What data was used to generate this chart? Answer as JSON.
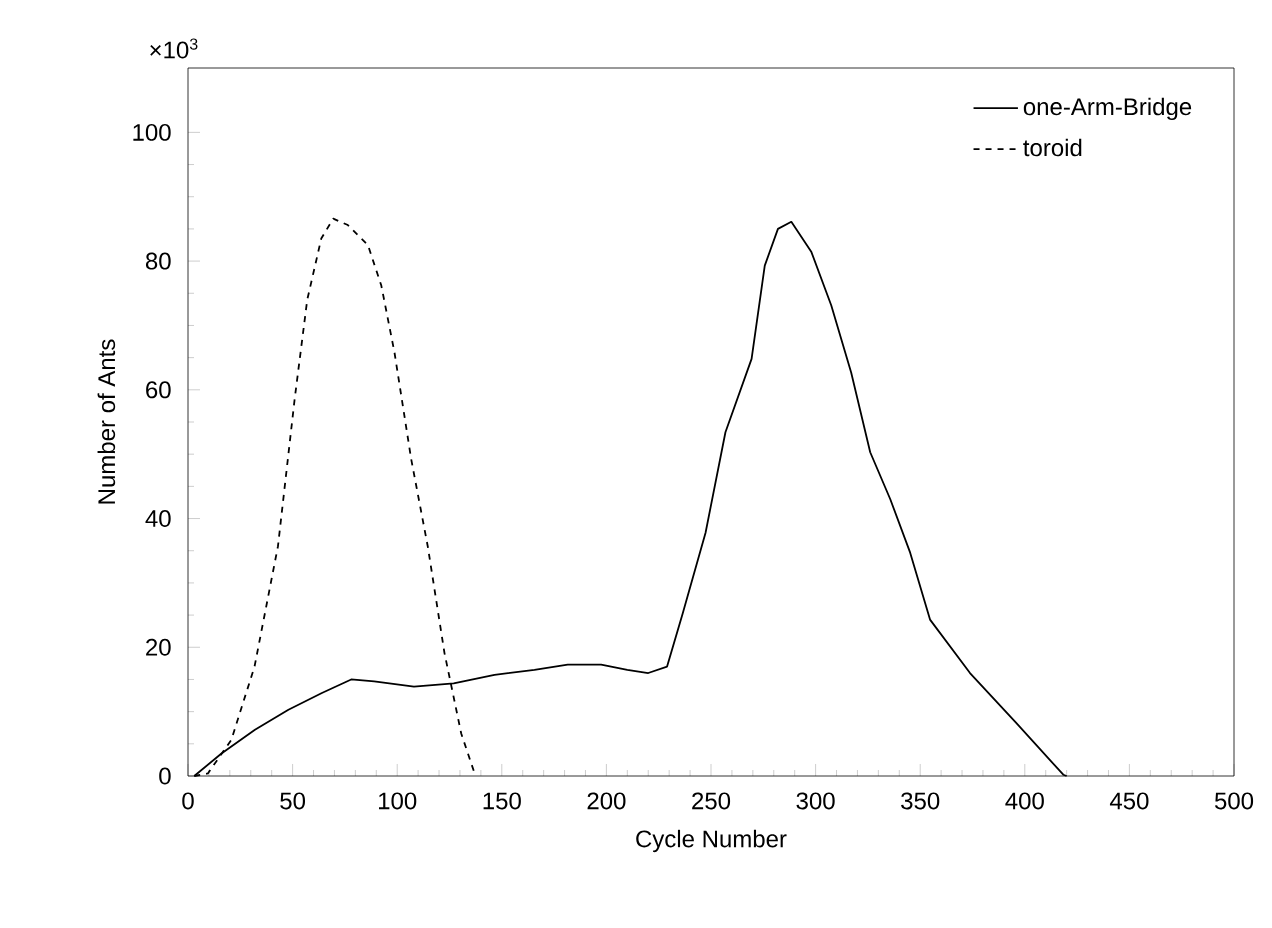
{
  "chart_data": {
    "type": "line",
    "xlabel": "Cycle Number",
    "ylabel": "Number of Ants",
    "annotations": [
      "×10$^{3}$"
    ],
    "xlim": [
      0,
      500
    ],
    "xticks": [
      0,
      50,
      100,
      150,
      200,
      250,
      300,
      350,
      400,
      450,
      500
    ],
    "ylim": [
      0,
      110
    ],
    "yticks": [
      0,
      20,
      40,
      60,
      80,
      100
    ],
    "grid": false,
    "legend": "top right",
    "marker": "none",
    "series": [
      {
        "name": "one-Arm-Bridge",
        "color": "#000000",
        "line_style": "solid",
        "x": [
          3,
          16,
          32,
          48,
          64,
          78,
          89,
          108,
          127,
          146.5,
          165.6,
          181.5,
          197.5,
          210,
          220,
          229,
          236.5,
          247.4,
          256.9,
          269.4,
          275.7,
          282,
          288.4,
          298,
          307.5,
          317,
          326.1,
          335.7,
          345.2,
          354.7,
          373.8,
          396,
          418.4,
          420
        ],
        "values": [
          0,
          3.5,
          7.2,
          10.3,
          12.9,
          15,
          14.7,
          13.9,
          14.4,
          15.7,
          16.5,
          17.3,
          17.3,
          16.5,
          16,
          17,
          25.3,
          37.8,
          53.4,
          64.8,
          79.3,
          85,
          86.1,
          81.4,
          73.1,
          62.7,
          50.3,
          43,
          34.7,
          24.3,
          16,
          8.2,
          0.2,
          0
        ]
      },
      {
        "name": "toroid",
        "color": "#000000",
        "line_style": "dashed",
        "x": [
          3,
          9.5,
          20.7,
          31.8,
          43,
          51,
          57,
          63.7,
          69.4,
          76.4,
          86,
          92.4,
          98.7,
          106.7,
          114.6,
          122.6,
          130.6,
          137
        ],
        "values": [
          0,
          0.4,
          5.6,
          17,
          35.7,
          58.6,
          74,
          83.5,
          86.6,
          85.6,
          82.5,
          76.2,
          65.8,
          49.2,
          35.7,
          19.1,
          6.6,
          0.4
        ]
      }
    ]
  }
}
